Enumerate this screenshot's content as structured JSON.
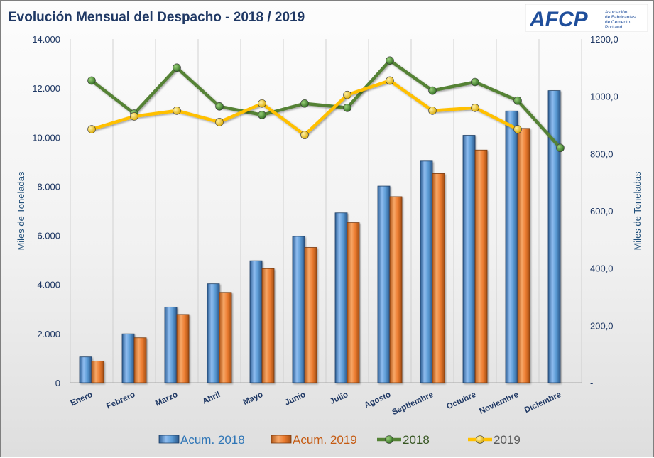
{
  "chart_data": {
    "type": "bar+line",
    "title": "Evolución Mensual del Despacho - 2018 / 2019",
    "categories": [
      "Enero",
      "Febrero",
      "Marzo",
      "Abril",
      "Mayo",
      "Junio",
      "Julio",
      "Agosto",
      "Septiembre",
      "Octubre",
      "Noviembre",
      "Diciembre"
    ],
    "ylabel_left": "Miles de Toneladas",
    "ylabel_right": "Miles de Toneladas",
    "ylim_left": [
      0,
      14000
    ],
    "ylim_right": [
      0,
      1200
    ],
    "yticks_left": [
      "0",
      "2.000",
      "4.000",
      "6.000",
      "8.000",
      "10.000",
      "12.000",
      "14.000"
    ],
    "yticks_right": [
      "-",
      "200,0",
      "400,0",
      "600,0",
      "800,0",
      "1000,0",
      "1200,0"
    ],
    "grid": "vertical",
    "legend_position": "bottom",
    "series": [
      {
        "name": "Acum. 2018",
        "type": "bar",
        "axis": "left",
        "color": "#4a86c8",
        "values": [
          1050,
          1990,
          3080,
          4030,
          4970,
          5960,
          6920,
          8010,
          9030,
          10080,
          11070,
          11900
        ]
      },
      {
        "name": "Acum. 2019",
        "type": "bar",
        "axis": "left",
        "color": "#ed7d31",
        "values": [
          880,
          1830,
          2780,
          3680,
          4650,
          5510,
          6520,
          7580,
          8520,
          9480,
          10360,
          null
        ]
      },
      {
        "name": "2018",
        "type": "line",
        "axis": "right",
        "color": "#548235",
        "marker": "#2f6b1f",
        "values": [
          1055,
          940,
          1100,
          965,
          935,
          975,
          960,
          1125,
          1020,
          1050,
          985,
          820
        ]
      },
      {
        "name": "2019",
        "type": "line",
        "axis": "right",
        "color": "#ffc000",
        "marker": "#e6b400",
        "values": [
          885,
          930,
          950,
          910,
          975,
          865,
          1005,
          1055,
          950,
          960,
          885,
          null
        ]
      }
    ]
  },
  "logo": {
    "name": "AFCP",
    "line1": "Asociación",
    "line2": "de Fabricantes",
    "line3": "de Cemento",
    "line4": "Portland"
  }
}
